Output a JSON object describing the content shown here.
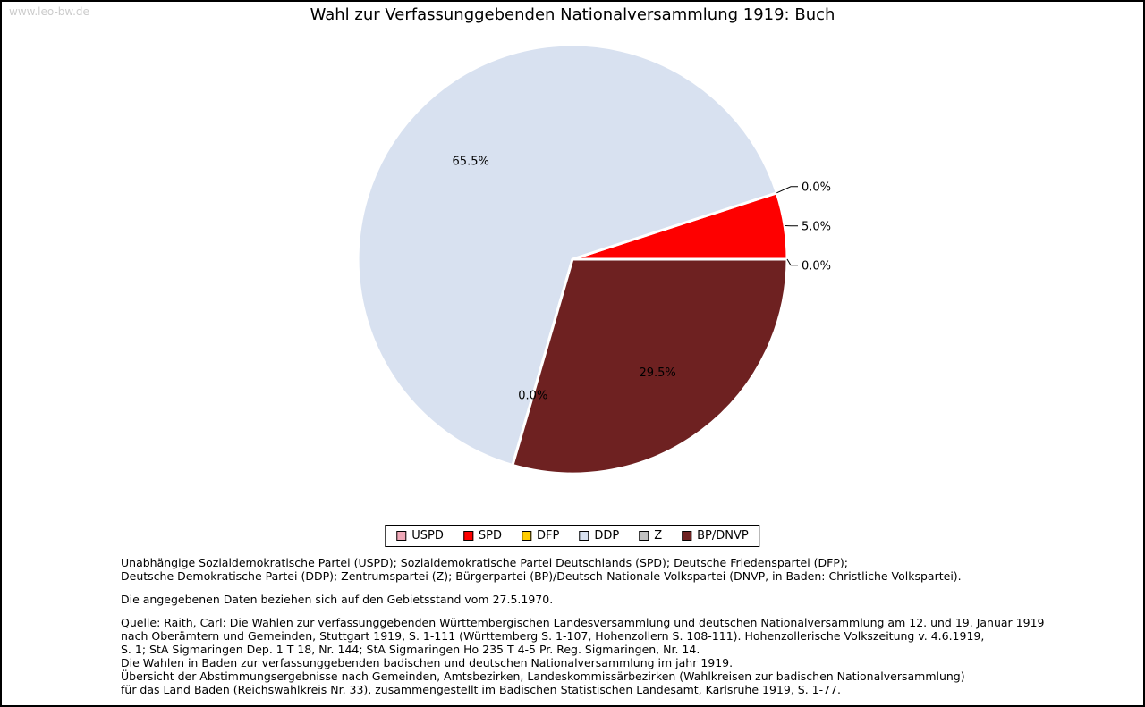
{
  "watermark": "www.leo-bw.de",
  "chart_data": {
    "type": "pie",
    "title": "Wahl zur Verfassunggebenden Nationalversammlung 1919: Buch",
    "unit": "%",
    "start_angle_deg": 0,
    "direction": "counterclockwise",
    "legend_position": "bottom",
    "slices": [
      {
        "label": "USPD",
        "value": 0.0,
        "color": "#f0a8b8",
        "label_placement": "outside"
      },
      {
        "label": "SPD",
        "value": 5.0,
        "color": "#fe0000",
        "label_placement": "outside"
      },
      {
        "label": "DFP",
        "value": 0.0,
        "color": "#ffcd00",
        "label_placement": "outside"
      },
      {
        "label": "DDP",
        "value": 65.5,
        "color": "#d8e1f0",
        "label_placement": "inside"
      },
      {
        "label": "Z",
        "value": 0.0,
        "color": "#c2c2c2",
        "label_placement": "inside"
      },
      {
        "label": "BP/DNVP",
        "value": 29.5,
        "color": "#6e2121",
        "label_placement": "inside"
      }
    ]
  },
  "footnotes": {
    "party_lines": [
      "Unabhängige Sozialdemokratische Partei (USPD); Sozialdemokratische Partei Deutschlands (SPD); Deutsche Friedenspartei (DFP);",
      "Deutsche Demokratische Partei (DDP); Zentrumspartei (Z); Bürgerpartei (BP)/Deutsch-Nationale Volkspartei (DNVP, in Baden: Christliche Volkspartei)."
    ],
    "note": "Die angegebenen Daten beziehen sich auf den Gebietsstand vom 27.5.1970.",
    "source_lines": [
      "Quelle: Raith, Carl: Die Wahlen zur verfassunggebenden Württembergischen Landesversammlung und deutschen Nationalversammlung am 12. und 19. Januar 1919",
      "nach Oberämtern und Gemeinden, Stuttgart 1919, S. 1-111 (Württemberg S. 1-107, Hohenzollern S. 108-111). Hohenzollerische Volkszeitung v. 4.6.1919,",
      "S. 1; StA Sigmaringen Dep. 1 T 18, Nr. 144; StA Sigmaringen Ho 235 T 4-5 Pr. Reg. Sigmaringen, Nr. 14.",
      "Die Wahlen in Baden zur verfassunggebenden badischen und deutschen Nationalversammlung im jahr 1919.",
      "Übersicht der Abstimmungsergebnisse nach Gemeinden, Amtsbezirken, Landeskommissärbezirken (Wahlkreisen zur badischen Nationalversammlung)",
      "für das Land Baden (Reichswahlkreis Nr. 33), zusammengestellt im Badischen Statistischen Landesamt, Karlsruhe 1919, S. 1-77."
    ]
  }
}
